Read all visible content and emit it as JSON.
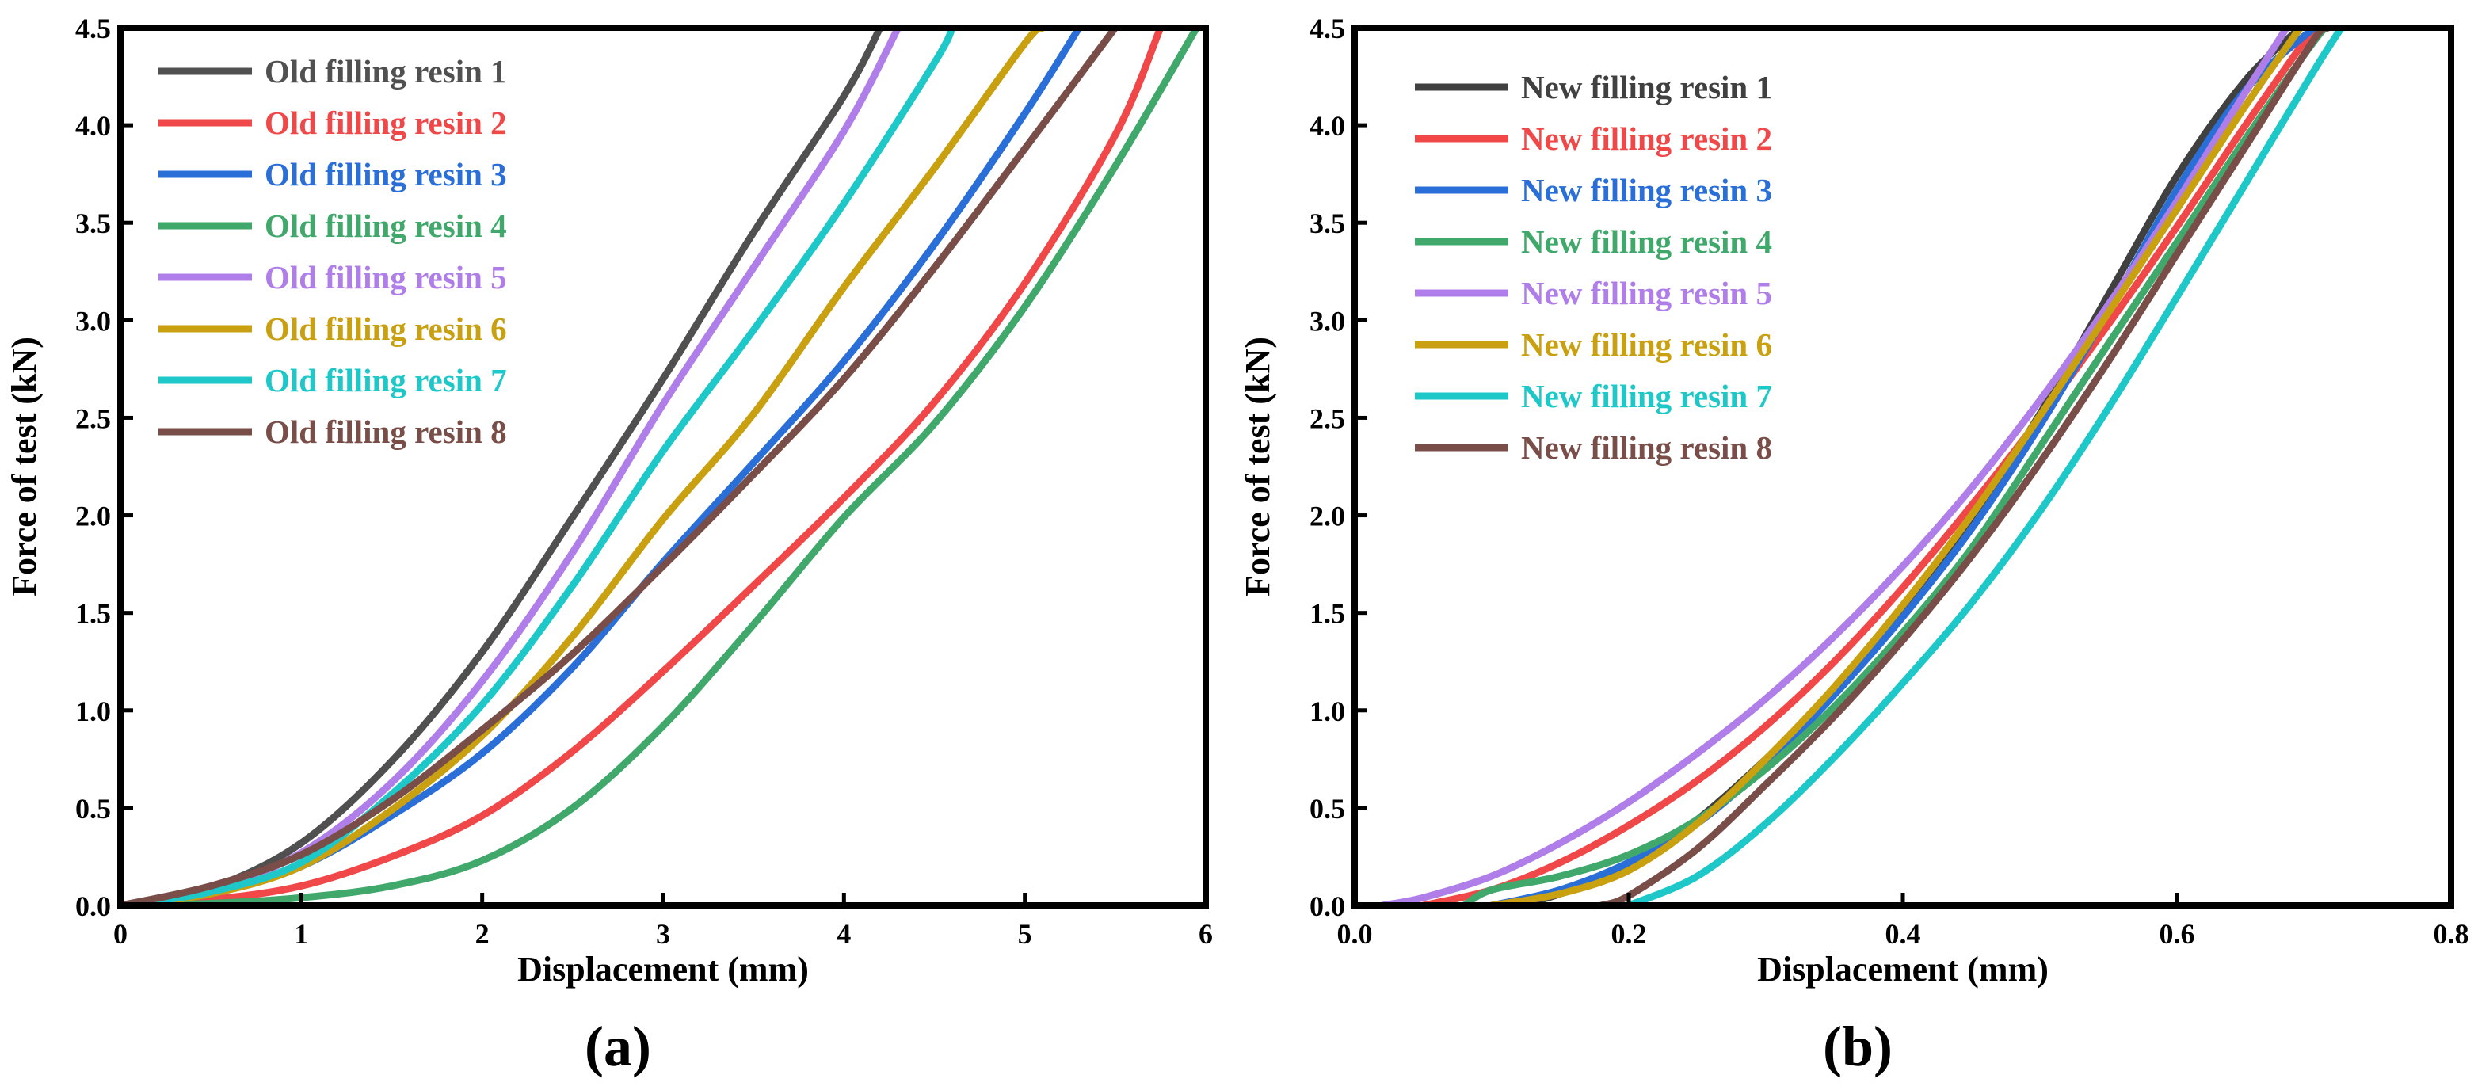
{
  "chart_data": [
    {
      "type": "line",
      "panel_label": "(a)",
      "xlabel": "Displacement (mm)",
      "ylabel": "Force of test (kN)",
      "xlim": [
        0,
        6
      ],
      "ylim": [
        0,
        4.5
      ],
      "xticks": [
        "0",
        "1",
        "2",
        "3",
        "4",
        "5",
        "6"
      ],
      "yticks": [
        "0.0",
        "0.5",
        "1.0",
        "1.5",
        "2.0",
        "2.5",
        "3.0",
        "3.5",
        "4.0",
        "4.5"
      ],
      "grid": false,
      "legend_position": "top-left",
      "series": [
        {
          "name": "Old filling resin 1",
          "color": "#505050",
          "x": [
            0,
            0.5,
            1,
            1.5,
            2,
            2.5,
            3,
            3.5,
            4,
            4.2
          ],
          "y": [
            0,
            0.09,
            0.32,
            0.74,
            1.3,
            1.99,
            2.7,
            3.45,
            4.15,
            4.5
          ]
        },
        {
          "name": "Old filling resin 2",
          "color": "#f04848",
          "x": [
            0,
            0.5,
            1,
            1.5,
            2,
            2.5,
            3,
            3.5,
            4,
            4.5,
            5,
            5.5,
            5.75
          ],
          "y": [
            0,
            0.03,
            0.1,
            0.25,
            0.46,
            0.79,
            1.2,
            1.64,
            2.09,
            2.58,
            3.19,
            3.95,
            4.5
          ]
        },
        {
          "name": "Old filling resin 3",
          "color": "#2a6ed8",
          "x": [
            0,
            0.5,
            1,
            1.5,
            2,
            2.5,
            3,
            3.5,
            4,
            4.5,
            5,
            5.3
          ],
          "y": [
            0,
            0.06,
            0.2,
            0.46,
            0.78,
            1.22,
            1.76,
            2.27,
            2.79,
            3.39,
            4.06,
            4.5
          ]
        },
        {
          "name": "Old filling resin 4",
          "color": "#3fa86a",
          "x": [
            0,
            0.5,
            1,
            1.5,
            2,
            2.5,
            3,
            3.5,
            4,
            4.5,
            5,
            5.5,
            5.95
          ],
          "y": [
            0,
            0.01,
            0.04,
            0.1,
            0.23,
            0.5,
            0.92,
            1.44,
            1.99,
            2.47,
            3.07,
            3.79,
            4.5
          ]
        },
        {
          "name": "Old filling resin 5",
          "color": "#b07ee8",
          "x": [
            0,
            0.5,
            1,
            1.5,
            2,
            2.5,
            3,
            3.5,
            4,
            4.3
          ],
          "y": [
            0,
            0.08,
            0.27,
            0.63,
            1.15,
            1.81,
            2.57,
            3.27,
            3.97,
            4.5
          ]
        },
        {
          "name": "Old filling resin 6",
          "color": "#c8a010",
          "x": [
            0,
            0.5,
            1,
            1.5,
            2,
            2.5,
            3,
            3.5,
            4,
            4.5,
            5,
            5.1
          ],
          "y": [
            0,
            0.06,
            0.2,
            0.49,
            0.87,
            1.38,
            1.98,
            2.52,
            3.17,
            3.78,
            4.42,
            4.5
          ]
        },
        {
          "name": "Old filling resin 7",
          "color": "#1ec8c8",
          "x": [
            0,
            0.5,
            1,
            1.5,
            2,
            2.5,
            3,
            3.5,
            4,
            4.5,
            4.6
          ],
          "y": [
            0,
            0.07,
            0.22,
            0.57,
            1.03,
            1.64,
            2.33,
            2.95,
            3.6,
            4.32,
            4.5
          ]
        },
        {
          "name": "Old filling resin 8",
          "color": "#7a4e48",
          "x": [
            0,
            0.5,
            1,
            1.5,
            2,
            2.5,
            3,
            3.5,
            4,
            4.5,
            5,
            5.5
          ],
          "y": [
            0,
            0.1,
            0.26,
            0.54,
            0.9,
            1.29,
            1.74,
            2.21,
            2.7,
            3.27,
            3.88,
            4.5
          ]
        }
      ]
    },
    {
      "type": "line",
      "panel_label": "(b)",
      "xlabel": "Displacement (mm)",
      "ylabel": "Force of test (kN)",
      "xlim": [
        0,
        0.8
      ],
      "ylim": [
        0,
        4.5
      ],
      "xticks": [
        "0.0",
        "0.2",
        "0.4",
        "0.6",
        "0.8"
      ],
      "yticks": [
        "0.0",
        "0.5",
        "1.0",
        "1.5",
        "2.0",
        "2.5",
        "3.0",
        "3.5",
        "4.0",
        "4.5"
      ],
      "grid": false,
      "legend_position": "top-left",
      "series": [
        {
          "name": "New filling resin 1",
          "color": "#404040",
          "x": [
            0.12,
            0.15,
            0.2,
            0.25,
            0.3,
            0.35,
            0.4,
            0.45,
            0.5,
            0.55,
            0.6,
            0.65,
            0.69
          ],
          "y": [
            0,
            0.06,
            0.2,
            0.44,
            0.75,
            1.1,
            1.49,
            1.97,
            2.52,
            3.13,
            3.74,
            4.23,
            4.5
          ]
        },
        {
          "name": "New filling resin 2",
          "color": "#f04848",
          "x": [
            0.05,
            0.1,
            0.15,
            0.2,
            0.25,
            0.3,
            0.35,
            0.4,
            0.45,
            0.5,
            0.55,
            0.6,
            0.65,
            0.7
          ],
          "y": [
            0,
            0.08,
            0.22,
            0.41,
            0.64,
            0.92,
            1.25,
            1.63,
            2.05,
            2.5,
            2.98,
            3.48,
            4.0,
            4.5
          ]
        },
        {
          "name": "New filling resin 3",
          "color": "#2a6ed8",
          "x": [
            0.1,
            0.15,
            0.2,
            0.25,
            0.3,
            0.35,
            0.4,
            0.45,
            0.5,
            0.55,
            0.6,
            0.65,
            0.7
          ],
          "y": [
            0,
            0.08,
            0.22,
            0.42,
            0.72,
            1.08,
            1.48,
            1.93,
            2.46,
            3.05,
            3.67,
            4.18,
            4.5
          ]
        },
        {
          "name": "New filling resin 4",
          "color": "#3fa86a",
          "x": [
            0.08,
            0.1,
            0.15,
            0.2,
            0.25,
            0.3,
            0.35,
            0.4,
            0.45,
            0.5,
            0.55,
            0.6,
            0.65,
            0.7,
            0.71
          ],
          "y": [
            0,
            0.08,
            0.15,
            0.26,
            0.44,
            0.7,
            1.02,
            1.4,
            1.83,
            2.35,
            2.88,
            3.4,
            3.93,
            4.43,
            4.5
          ]
        },
        {
          "name": "New filling resin 5",
          "color": "#b07ee8",
          "x": [
            0.02,
            0.05,
            0.1,
            0.15,
            0.2,
            0.25,
            0.3,
            0.35,
            0.4,
            0.45,
            0.5,
            0.55,
            0.6,
            0.65,
            0.68
          ],
          "y": [
            0,
            0.04,
            0.15,
            0.32,
            0.53,
            0.78,
            1.06,
            1.38,
            1.74,
            2.14,
            2.59,
            3.08,
            3.61,
            4.17,
            4.5
          ]
        },
        {
          "name": "New filling resin 6",
          "color": "#c8a010",
          "x": [
            0.1,
            0.15,
            0.2,
            0.25,
            0.3,
            0.35,
            0.4,
            0.45,
            0.5,
            0.55,
            0.6,
            0.65,
            0.69
          ],
          "y": [
            0,
            0.06,
            0.18,
            0.42,
            0.75,
            1.12,
            1.54,
            2.0,
            2.51,
            3.04,
            3.57,
            4.1,
            4.5
          ]
        },
        {
          "name": "New filling resin 7",
          "color": "#1ec8c8",
          "x": [
            0.2,
            0.25,
            0.3,
            0.35,
            0.4,
            0.45,
            0.5,
            0.55,
            0.6,
            0.65,
            0.7,
            0.72
          ],
          "y": [
            0,
            0.15,
            0.42,
            0.76,
            1.14,
            1.55,
            2.02,
            2.55,
            3.12,
            3.7,
            4.28,
            4.5
          ]
        },
        {
          "name": "New filling resin 8",
          "color": "#7a4e48",
          "x": [
            0.18,
            0.2,
            0.25,
            0.3,
            0.35,
            0.4,
            0.45,
            0.5,
            0.55,
            0.6,
            0.65,
            0.7,
            0.71
          ],
          "y": [
            0,
            0.05,
            0.29,
            0.62,
            0.97,
            1.36,
            1.79,
            2.27,
            2.79,
            3.34,
            3.89,
            4.44,
            4.5
          ]
        }
      ]
    }
  ]
}
